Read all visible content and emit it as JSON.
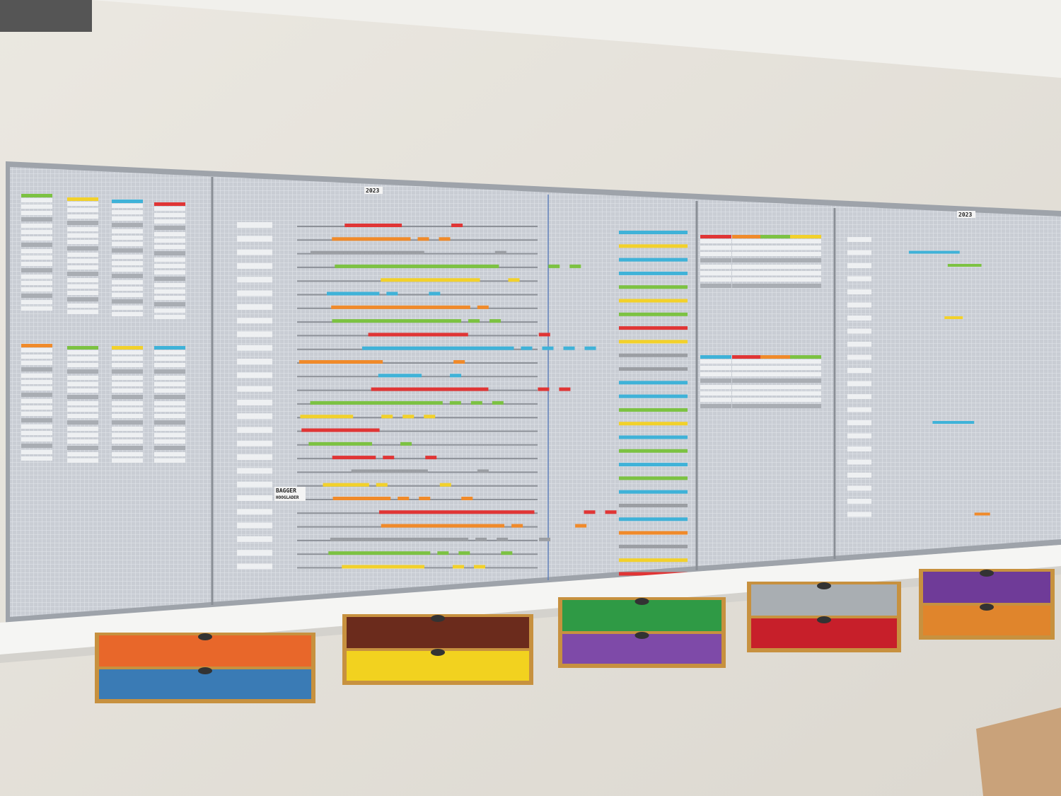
{
  "board": {
    "year_labels": [
      "2023",
      "2023"
    ],
    "tiles": [
      "BAGGER",
      "HOOGLADER"
    ]
  }
}
